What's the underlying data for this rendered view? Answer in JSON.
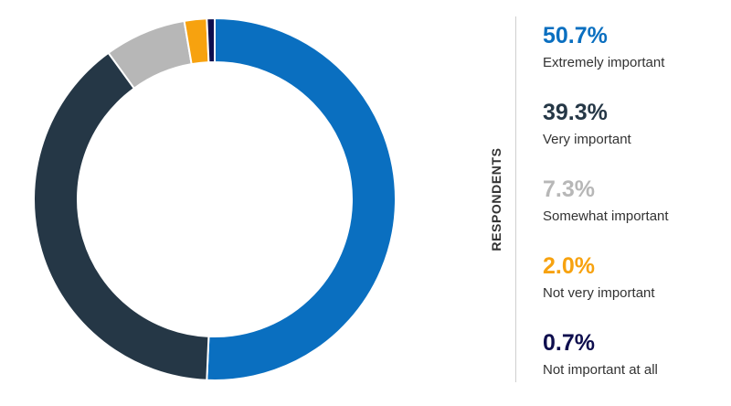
{
  "chart_data": {
    "type": "pie",
    "variant": "donut",
    "axis_title": "RESPONDENTS",
    "unit": "%",
    "slices": [
      {
        "label": "Extremely important",
        "value": 50.7,
        "display": "50.7%",
        "color": "#0a6fc0"
      },
      {
        "label": "Very important",
        "value": 39.3,
        "display": "39.3%",
        "color": "#253746"
      },
      {
        "label": "Somewhat important",
        "value": 7.3,
        "display": "7.3%",
        "color": "#b7b7b7"
      },
      {
        "label": "Not very important",
        "value": 2.0,
        "display": "2.0%",
        "color": "#f7a20f"
      },
      {
        "label": "Not important at all",
        "value": 0.7,
        "display": "0.7%",
        "color": "#0e0e4e"
      }
    ],
    "legend_position": "right"
  }
}
